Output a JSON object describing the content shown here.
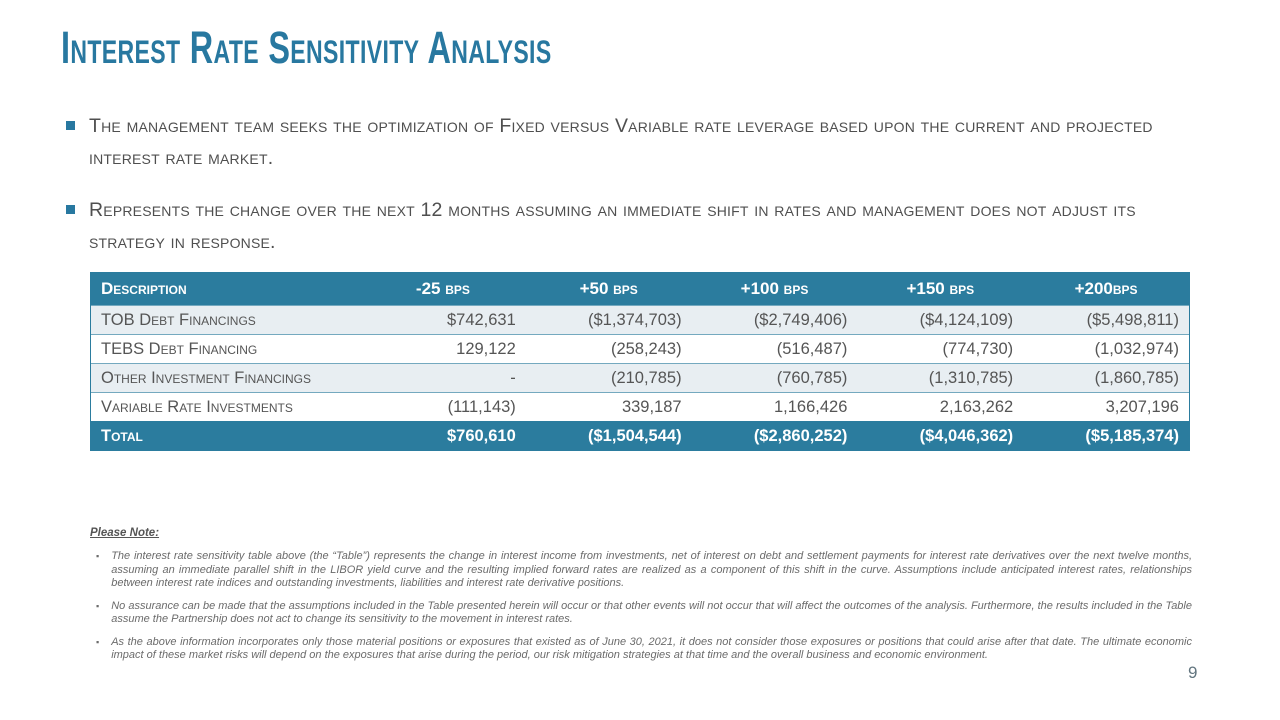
{
  "slide": {
    "title": "Interest Rate Sensitivity Analysis",
    "page_number": "9",
    "accent_color": "#2b7c9e"
  },
  "bullets": [
    "The management team seeks the optimization of Fixed versus Variable rate leverage based upon the current and projected interest rate market.",
    "Represents the change over the next 12 months assuming an immediate shift in rates and management does not adjust its strategy in response."
  ],
  "table": {
    "headers": [
      "Description",
      "-25 bps",
      "+50 bps",
      "+100 bps",
      "+150 bps",
      "+200bps"
    ],
    "rows": [
      {
        "label": "TOB Debt Financings",
        "values": [
          "$742,631",
          "($1,374,703)",
          "($2,749,406)",
          "($4,124,109)",
          "($5,498,811)"
        ]
      },
      {
        "label": "TEBS Debt Financing",
        "values": [
          "129,122",
          "(258,243)",
          "(516,487)",
          "(774,730)",
          "(1,032,974)"
        ]
      },
      {
        "label": "Other Investment Financings",
        "values": [
          "-",
          "(210,785)",
          "(760,785)",
          "(1,310,785)",
          "(1,860,785)"
        ]
      },
      {
        "label": "Variable Rate Investments",
        "values": [
          "(111,143)",
          "339,187",
          "1,166,426",
          "2,163,262",
          "3,207,196"
        ]
      }
    ],
    "total": {
      "label": "Total",
      "values": [
        "$760,610",
        "($1,504,544)",
        "($2,860,252)",
        "($4,046,362)",
        "($5,185,374)"
      ]
    }
  },
  "notes": {
    "heading": "Please Note:",
    "marker": "▪",
    "items": [
      "The interest rate sensitivity table above (the “Table”) represents the change in interest income from investments, net of interest on debt and settlement payments for interest rate derivatives over the next twelve months, assuming an immediate parallel shift in the LIBOR yield curve and the resulting implied forward rates are realized as a component of this shift in the curve. Assumptions include anticipated interest rates, relationships between interest rate indices and outstanding investments, liabilities and interest rate derivative positions.",
      "No assurance can be made that the assumptions included in the Table presented herein will occur or that other events will not occur that will affect the outcomes of the analysis. Furthermore, the results included in the Table assume the Partnership does not act to change its sensitivity to the movement in interest rates.",
      "As the above information incorporates only those material positions or exposures that existed as of June 30, 2021, it does not consider those exposures or positions that could arise after that date. The ultimate economic impact of these market risks will depend on the exposures that arise during the period, our risk mitigation strategies at that time and the overall business and economic environment."
    ]
  }
}
